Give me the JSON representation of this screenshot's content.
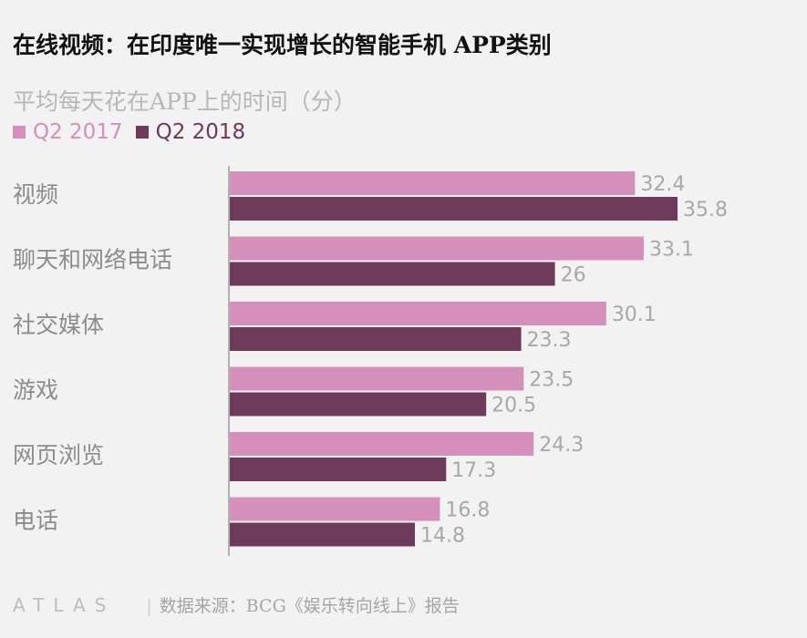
{
  "title": "在线视频：在印度唯一实现增长的智能手机 APP类别",
  "subtitle": "平均每天花在APP上的时间（分）",
  "colors": {
    "q2_2017": "#d48fbb",
    "q2_2018": "#6e3a59",
    "label": "#a8a8a8",
    "category": "#8c8c8c"
  },
  "footer": {
    "logo": "ATLAS",
    "source": "数据来源：BCG《娱乐转向线上》报告"
  },
  "chart_data": {
    "type": "bar",
    "orientation": "horizontal",
    "categories": [
      "视频",
      "聊天和网络电话",
      "社交媒体",
      "游戏",
      "网页浏览",
      "电话"
    ],
    "series": [
      {
        "name": "Q2 2017",
        "values": [
          32.4,
          33.1,
          30.1,
          23.5,
          24.3,
          16.8
        ]
      },
      {
        "name": "Q2 2018",
        "values": [
          35.8,
          26,
          23.3,
          20.5,
          17.3,
          14.8
        ]
      }
    ],
    "value_labels": [
      [
        "32.4",
        "33.1",
        "30.1",
        "23.5",
        "24.3",
        "16.8"
      ],
      [
        "35.8",
        "26",
        "23.3",
        "20.5",
        "17.3",
        "14.8"
      ]
    ],
    "xlim": [
      0,
      35.8
    ],
    "grid": false,
    "legend_position": "top-left"
  }
}
